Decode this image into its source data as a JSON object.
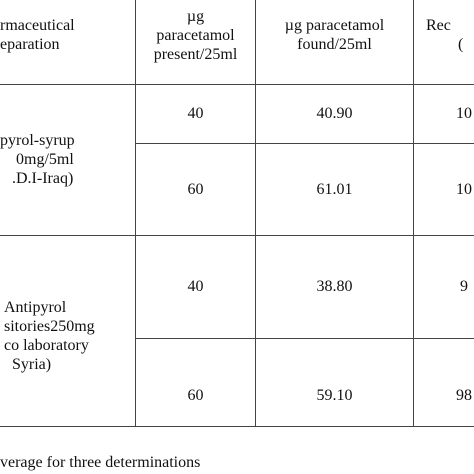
{
  "table": {
    "headers": {
      "preparation": [
        "rmaceutical",
        "eparation"
      ],
      "present": [
        "µg",
        "paracetamol",
        "present/25ml"
      ],
      "found": [
        "µg paracetamol",
        "found/25ml"
      ],
      "recovery": [
        "Rec",
        "("
      ]
    },
    "groups": [
      {
        "preparation": [
          "pyrol-syrup",
          "0mg/5ml",
          ".D.I-Iraq)"
        ],
        "rows": [
          {
            "present": "40",
            "found": "40.90",
            "recovery": "10"
          },
          {
            "present": "60",
            "found": "61.01",
            "recovery": "10"
          }
        ]
      },
      {
        "preparation": [
          "Antipyrol",
          "sitories250mg",
          "co laboratory",
          "Syria)"
        ],
        "rows": [
          {
            "present": "40",
            "found": "38.80",
            "recovery": "9"
          },
          {
            "present": "60",
            "found": "59.10",
            "recovery": "98"
          }
        ]
      }
    ]
  },
  "footnote": "verage for three determinations"
}
